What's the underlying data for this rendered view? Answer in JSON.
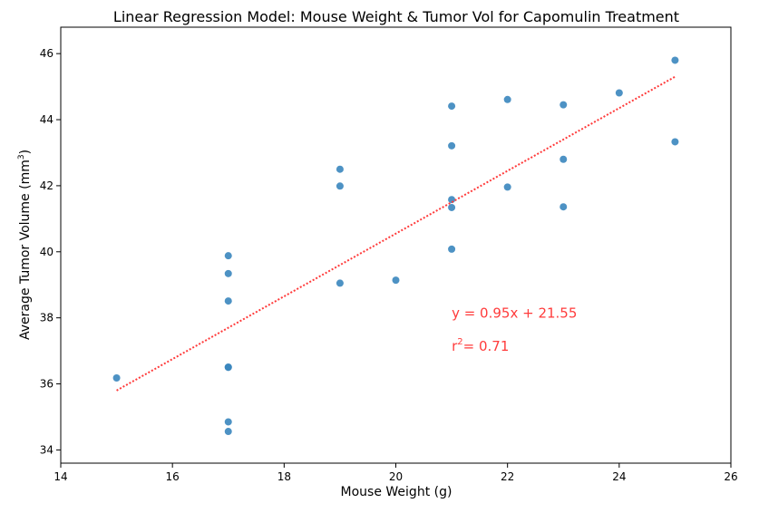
{
  "chart_data": {
    "type": "scatter",
    "title": "Linear Regression Model: Mouse Weight & Tumor Vol for Capomulin Treatment",
    "xlabel": "Mouse Weight (g)",
    "ylabel_main": "Average Tumor Volume (mm",
    "ylabel_sup": "3",
    "ylabel_close": ")",
    "xlim": [
      14,
      26
    ],
    "ylim": [
      33.6,
      46.8
    ],
    "xticks": [
      14,
      16,
      18,
      20,
      22,
      24,
      26
    ],
    "yticks": [
      34,
      36,
      38,
      40,
      42,
      44,
      46
    ],
    "grid": false,
    "point_color": "#3a86be",
    "line_color": "#ff3b3b",
    "points": [
      {
        "x": 15,
        "y": 36.18
      },
      {
        "x": 17,
        "y": 39.88
      },
      {
        "x": 17,
        "y": 39.34
      },
      {
        "x": 17,
        "y": 38.51
      },
      {
        "x": 17,
        "y": 36.51
      },
      {
        "x": 17,
        "y": 36.5
      },
      {
        "x": 17,
        "y": 34.85
      },
      {
        "x": 17,
        "y": 34.56
      },
      {
        "x": 19,
        "y": 42.5
      },
      {
        "x": 19,
        "y": 41.99
      },
      {
        "x": 19,
        "y": 39.05
      },
      {
        "x": 20,
        "y": 39.14
      },
      {
        "x": 21,
        "y": 44.41
      },
      {
        "x": 21,
        "y": 43.21
      },
      {
        "x": 21,
        "y": 41.58
      },
      {
        "x": 21,
        "y": 41.34
      },
      {
        "x": 21,
        "y": 40.08
      },
      {
        "x": 22,
        "y": 44.61
      },
      {
        "x": 22,
        "y": 41.96
      },
      {
        "x": 23,
        "y": 44.45
      },
      {
        "x": 23,
        "y": 42.8
      },
      {
        "x": 23,
        "y": 41.36
      },
      {
        "x": 24,
        "y": 44.81
      },
      {
        "x": 25,
        "y": 45.8
      },
      {
        "x": 25,
        "y": 43.33
      }
    ],
    "regression": {
      "slope": 0.95,
      "intercept": 21.55,
      "x_range": [
        15,
        25
      ],
      "equation_text": "y = 0.95x + 21.55",
      "r2_prefix": "r",
      "r2_sup": "2",
      "r2_value": "= 0.71"
    }
  }
}
